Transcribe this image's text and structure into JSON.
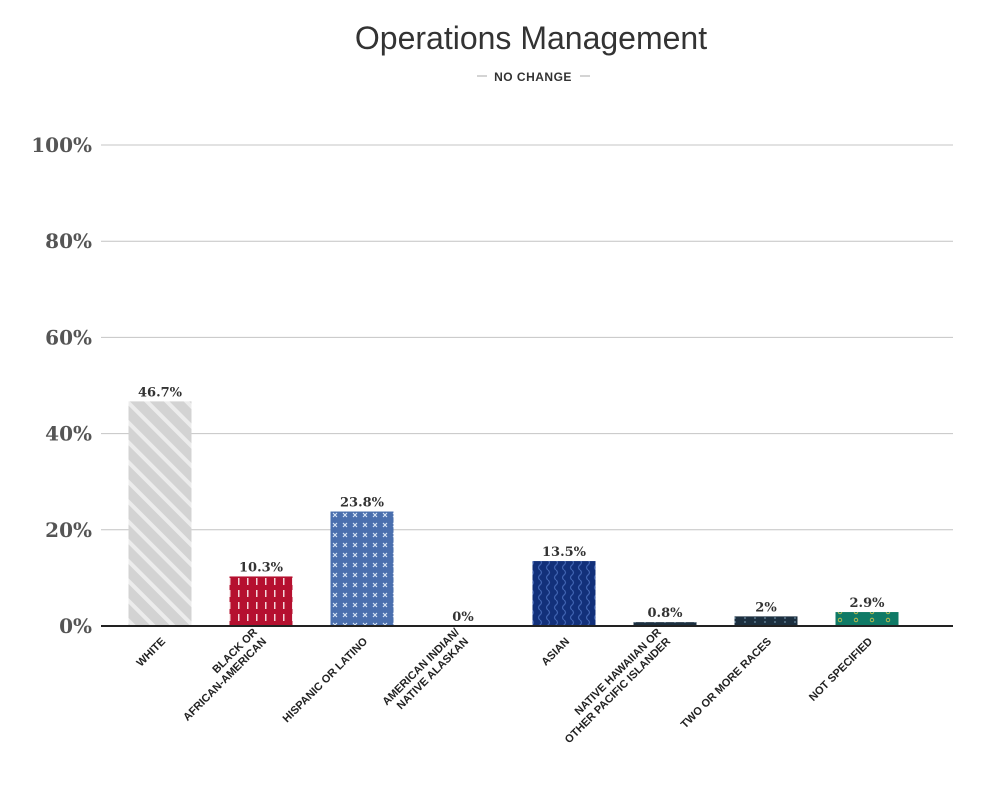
{
  "chart_data": {
    "type": "bar",
    "title": "Operations Management",
    "subtitle": "NO CHANGE",
    "categories": [
      [
        "WHITE"
      ],
      [
        "BLACK OR",
        "AFRICAN-AMERICAN"
      ],
      [
        "HISPANIC OR LATINO"
      ],
      [
        "AMERICAN INDIAN/",
        "NATIVE ALASKAN"
      ],
      [
        "ASIAN"
      ],
      [
        "NATIVE HAWAIIAN OR",
        "OTHER PACIFIC ISLANDER"
      ],
      [
        "TWO OR MORE RACES"
      ],
      [
        "NOT SPECIFIED"
      ]
    ],
    "values": [
      46.7,
      10.3,
      23.8,
      0,
      13.5,
      0.8,
      2,
      2.9
    ],
    "value_labels": [
      "46.7%",
      "10.3%",
      "23.8%",
      "0%",
      "13.5%",
      "0.8%",
      "2%",
      "2.9%"
    ],
    "yticks": [
      0,
      20,
      40,
      60,
      80,
      100
    ],
    "ytick_labels": [
      "0%",
      "20%",
      "40%",
      "60%",
      "80%",
      "100%"
    ],
    "ylim": [
      0,
      100
    ],
    "grid": true,
    "colors": [
      "#d3d3d3",
      "#b5102f",
      "#4a6fae",
      "#7a7a7a",
      "#12307a",
      "#1c2f3f",
      "#8a8a8a",
      "#0f7a66"
    ],
    "patterns": [
      "diagonal-stripes",
      "vertical-dashes",
      "crosses",
      "none",
      "waves",
      "dots",
      "dots",
      "circles"
    ]
  }
}
